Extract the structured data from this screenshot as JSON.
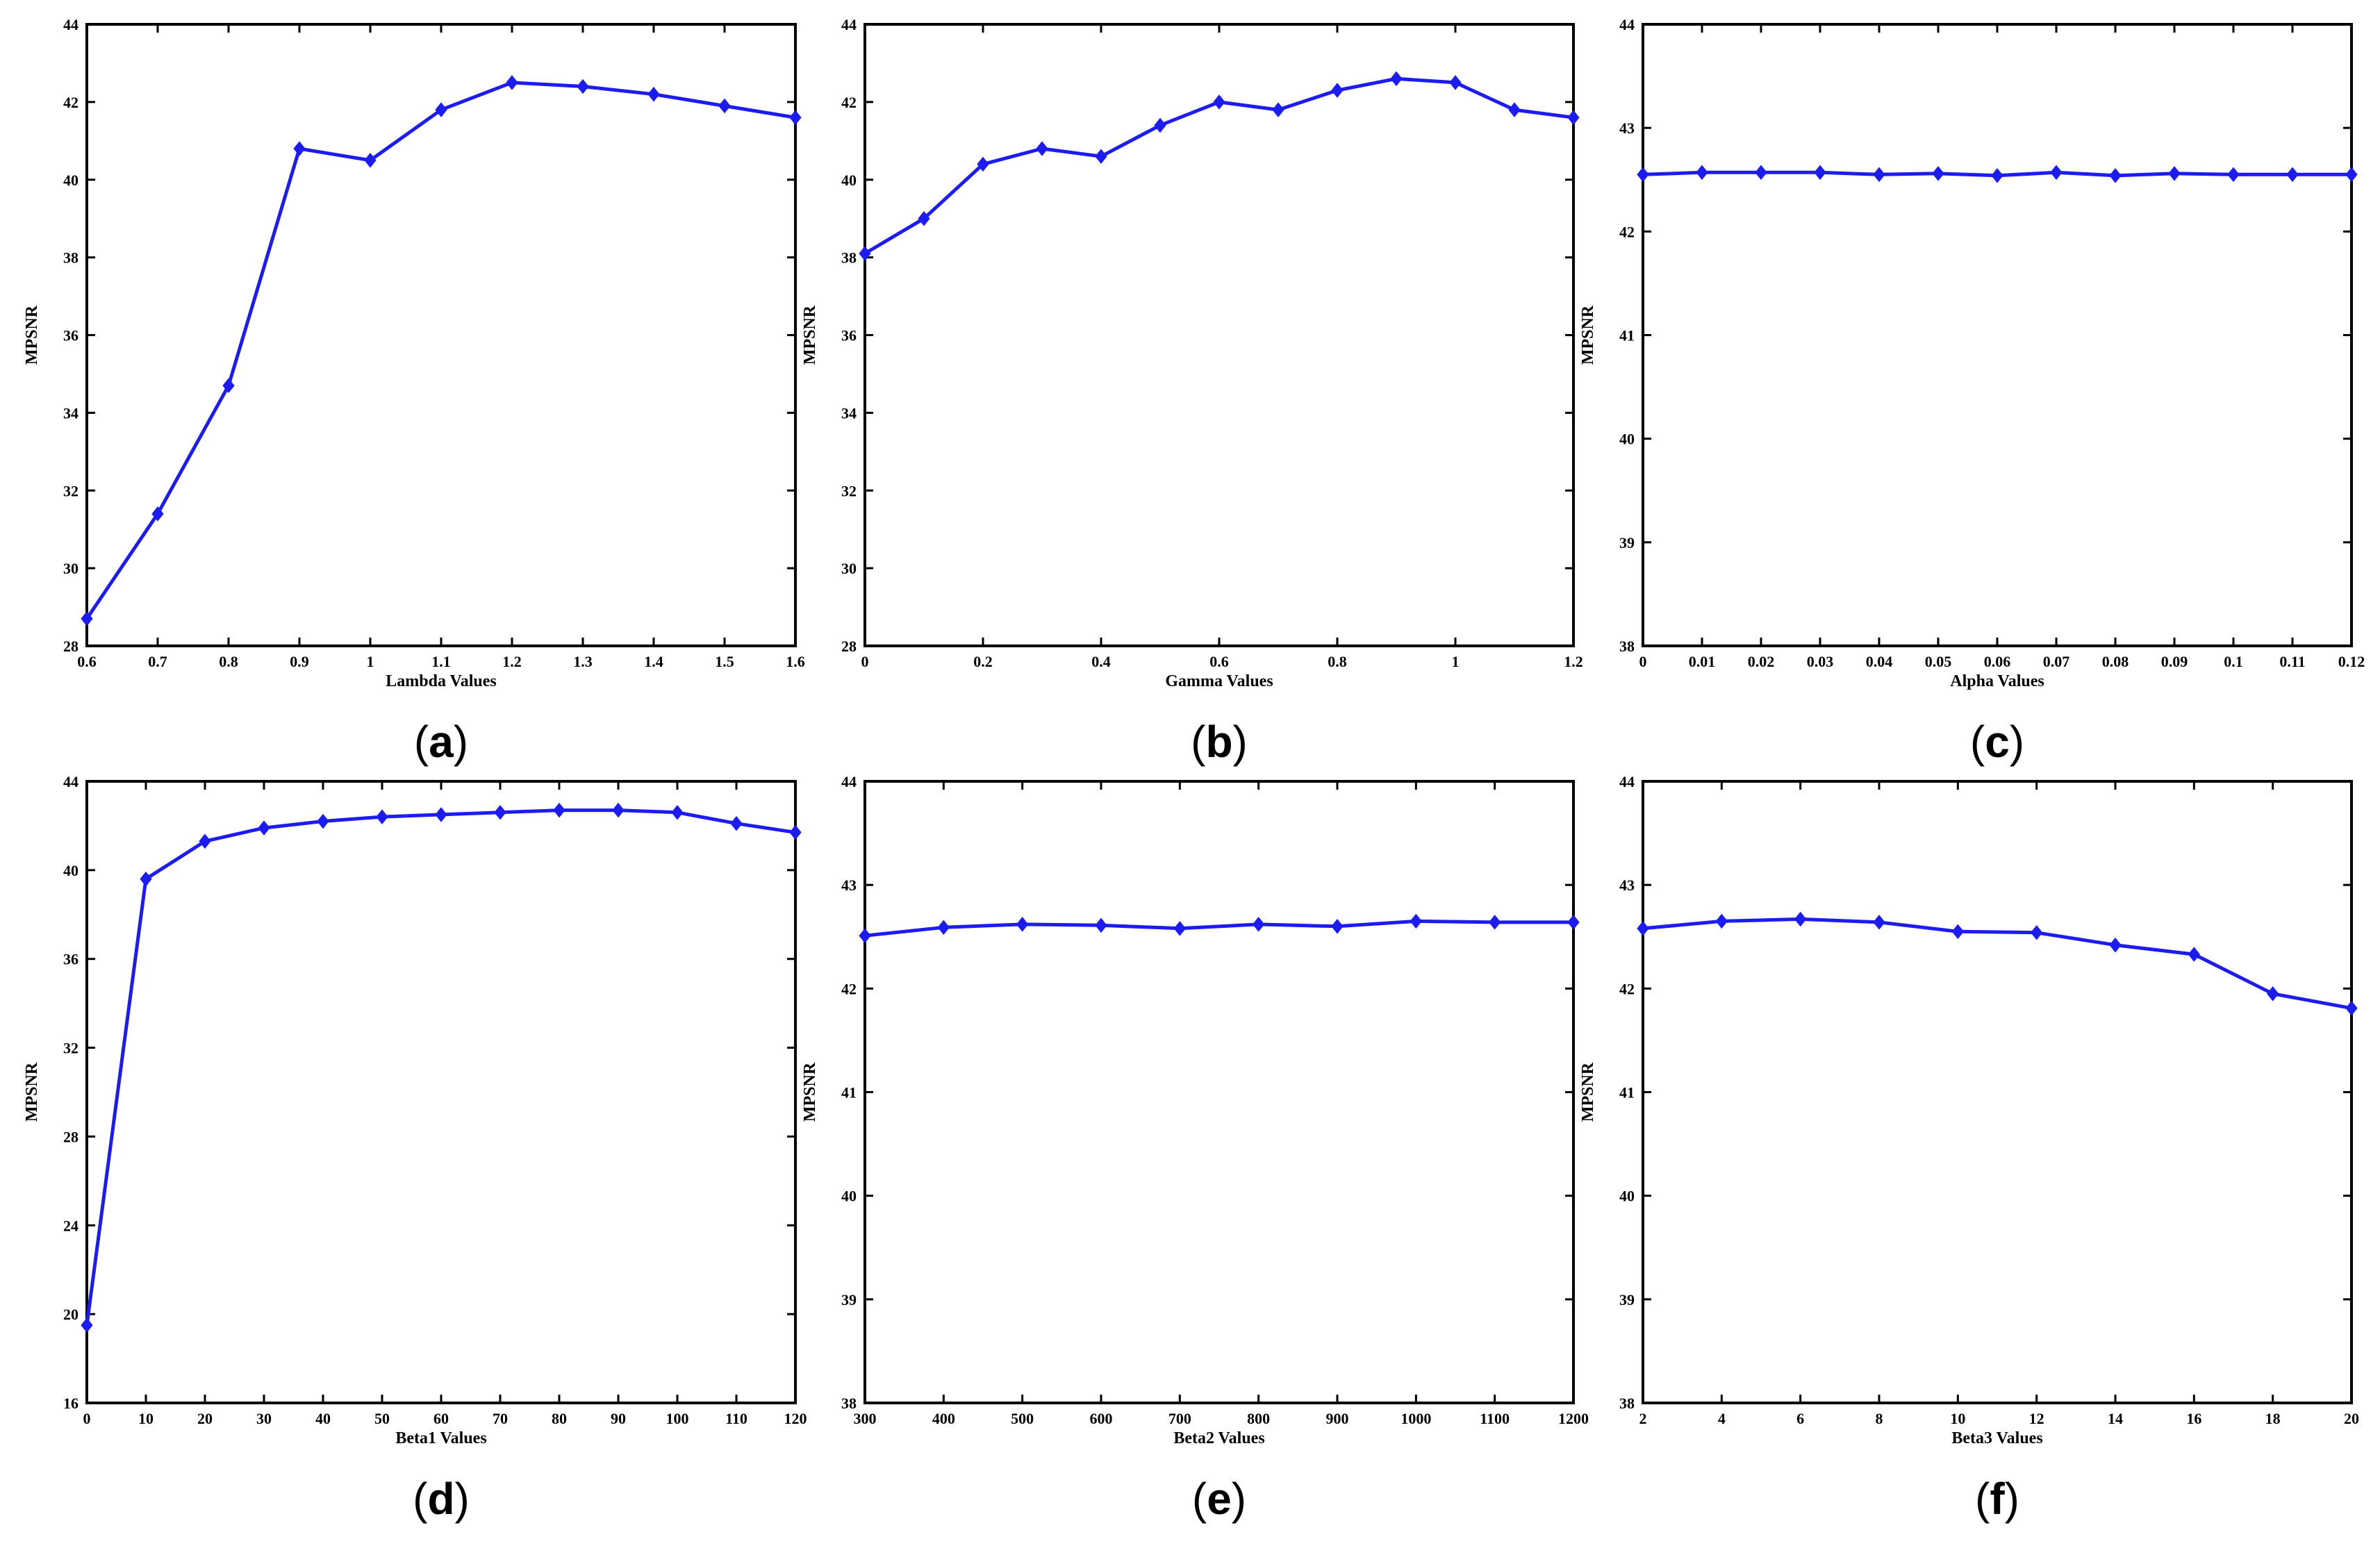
{
  "colors": {
    "series": "#1c1cf0",
    "axis": "#000000"
  },
  "chart_data": [
    {
      "id": "a",
      "type": "line",
      "panel_label": "a",
      "xlabel": "Lambda Values",
      "ylabel": "MPSNR",
      "xlim": [
        0.6,
        1.6
      ],
      "ylim": [
        28,
        44
      ],
      "xticks": [
        0.6,
        0.7,
        0.8,
        0.9,
        1,
        1.1,
        1.2,
        1.3,
        1.4,
        1.5,
        1.6
      ],
      "yticks": [
        28,
        30,
        32,
        34,
        36,
        38,
        40,
        42,
        44
      ],
      "x": [
        0.6,
        0.7,
        0.8,
        0.9,
        1.0,
        1.1,
        1.2,
        1.3,
        1.4,
        1.5,
        1.6
      ],
      "y": [
        28.7,
        31.4,
        34.7,
        40.8,
        40.5,
        41.8,
        42.5,
        42.4,
        42.2,
        41.9,
        41.6
      ]
    },
    {
      "id": "b",
      "type": "line",
      "panel_label": "b",
      "xlabel": "Gamma Values",
      "ylabel": "MPSNR",
      "xlim": [
        0,
        1.2
      ],
      "ylim": [
        28,
        44
      ],
      "xticks": [
        0,
        0.2,
        0.4,
        0.6,
        0.8,
        1,
        1.2
      ],
      "yticks": [
        28,
        30,
        32,
        34,
        36,
        38,
        40,
        42,
        44
      ],
      "x": [
        0,
        0.1,
        0.2,
        0.3,
        0.4,
        0.5,
        0.6,
        0.7,
        0.8,
        0.9,
        1.0,
        1.1,
        1.2
      ],
      "y": [
        38.1,
        39.0,
        40.4,
        40.8,
        40.6,
        41.4,
        42.0,
        41.8,
        42.3,
        42.6,
        42.5,
        41.8,
        41.6
      ]
    },
    {
      "id": "c",
      "type": "line",
      "panel_label": "c",
      "xlabel": "Alpha Values",
      "ylabel": "MPSNR",
      "xlim": [
        0,
        0.12
      ],
      "ylim": [
        38,
        44
      ],
      "xticks": [
        0,
        0.01,
        0.02,
        0.03,
        0.04,
        0.05,
        0.06,
        0.07,
        0.08,
        0.09,
        0.1,
        0.11,
        0.12
      ],
      "yticks": [
        38,
        39,
        40,
        41,
        42,
        43,
        44
      ],
      "x": [
        0,
        0.01,
        0.02,
        0.03,
        0.04,
        0.05,
        0.06,
        0.07,
        0.08,
        0.09,
        0.1,
        0.11,
        0.12
      ],
      "y": [
        42.55,
        42.57,
        42.57,
        42.57,
        42.55,
        42.56,
        42.54,
        42.57,
        42.54,
        42.56,
        42.55,
        42.55,
        42.55
      ]
    },
    {
      "id": "d",
      "type": "line",
      "panel_label": "d",
      "xlabel": "Beta1 Values",
      "ylabel": "MPSNR",
      "xlim": [
        0,
        120
      ],
      "ylim": [
        16,
        44
      ],
      "xticks": [
        0,
        10,
        20,
        30,
        40,
        50,
        60,
        70,
        80,
        90,
        100,
        110,
        120
      ],
      "yticks": [
        16,
        20,
        24,
        28,
        32,
        36,
        40,
        44
      ],
      "x": [
        0,
        10,
        20,
        30,
        40,
        50,
        60,
        70,
        80,
        90,
        100,
        110,
        120
      ],
      "y": [
        19.5,
        39.6,
        41.3,
        41.9,
        42.2,
        42.4,
        42.5,
        42.6,
        42.7,
        42.7,
        42.6,
        42.1,
        41.7
      ]
    },
    {
      "id": "e",
      "type": "line",
      "panel_label": "e",
      "xlabel": "Beta2 Values",
      "ylabel": "MPSNR",
      "xlim": [
        300,
        1200
      ],
      "ylim": [
        38,
        44
      ],
      "xticks": [
        300,
        400,
        500,
        600,
        700,
        800,
        900,
        1000,
        1100,
        1200
      ],
      "yticks": [
        38,
        39,
        40,
        41,
        42,
        43,
        44
      ],
      "x": [
        300,
        400,
        500,
        600,
        700,
        800,
        900,
        1000,
        1100,
        1200
      ],
      "y": [
        42.51,
        42.59,
        42.62,
        42.61,
        42.58,
        42.62,
        42.6,
        42.65,
        42.64,
        42.64
      ]
    },
    {
      "id": "f",
      "type": "line",
      "panel_label": "f",
      "xlabel": "Beta3 Values",
      "ylabel": "MPSNR",
      "xlim": [
        2,
        20
      ],
      "ylim": [
        38,
        44
      ],
      "xticks": [
        2,
        4,
        6,
        8,
        10,
        12,
        14,
        16,
        18,
        20
      ],
      "yticks": [
        38,
        39,
        40,
        41,
        42,
        43,
        44
      ],
      "x": [
        2,
        4,
        6,
        8,
        10,
        12,
        14,
        16,
        18,
        20
      ],
      "y": [
        42.58,
        42.65,
        42.67,
        42.64,
        42.55,
        42.54,
        42.42,
        42.33,
        41.95,
        41.81
      ]
    }
  ]
}
